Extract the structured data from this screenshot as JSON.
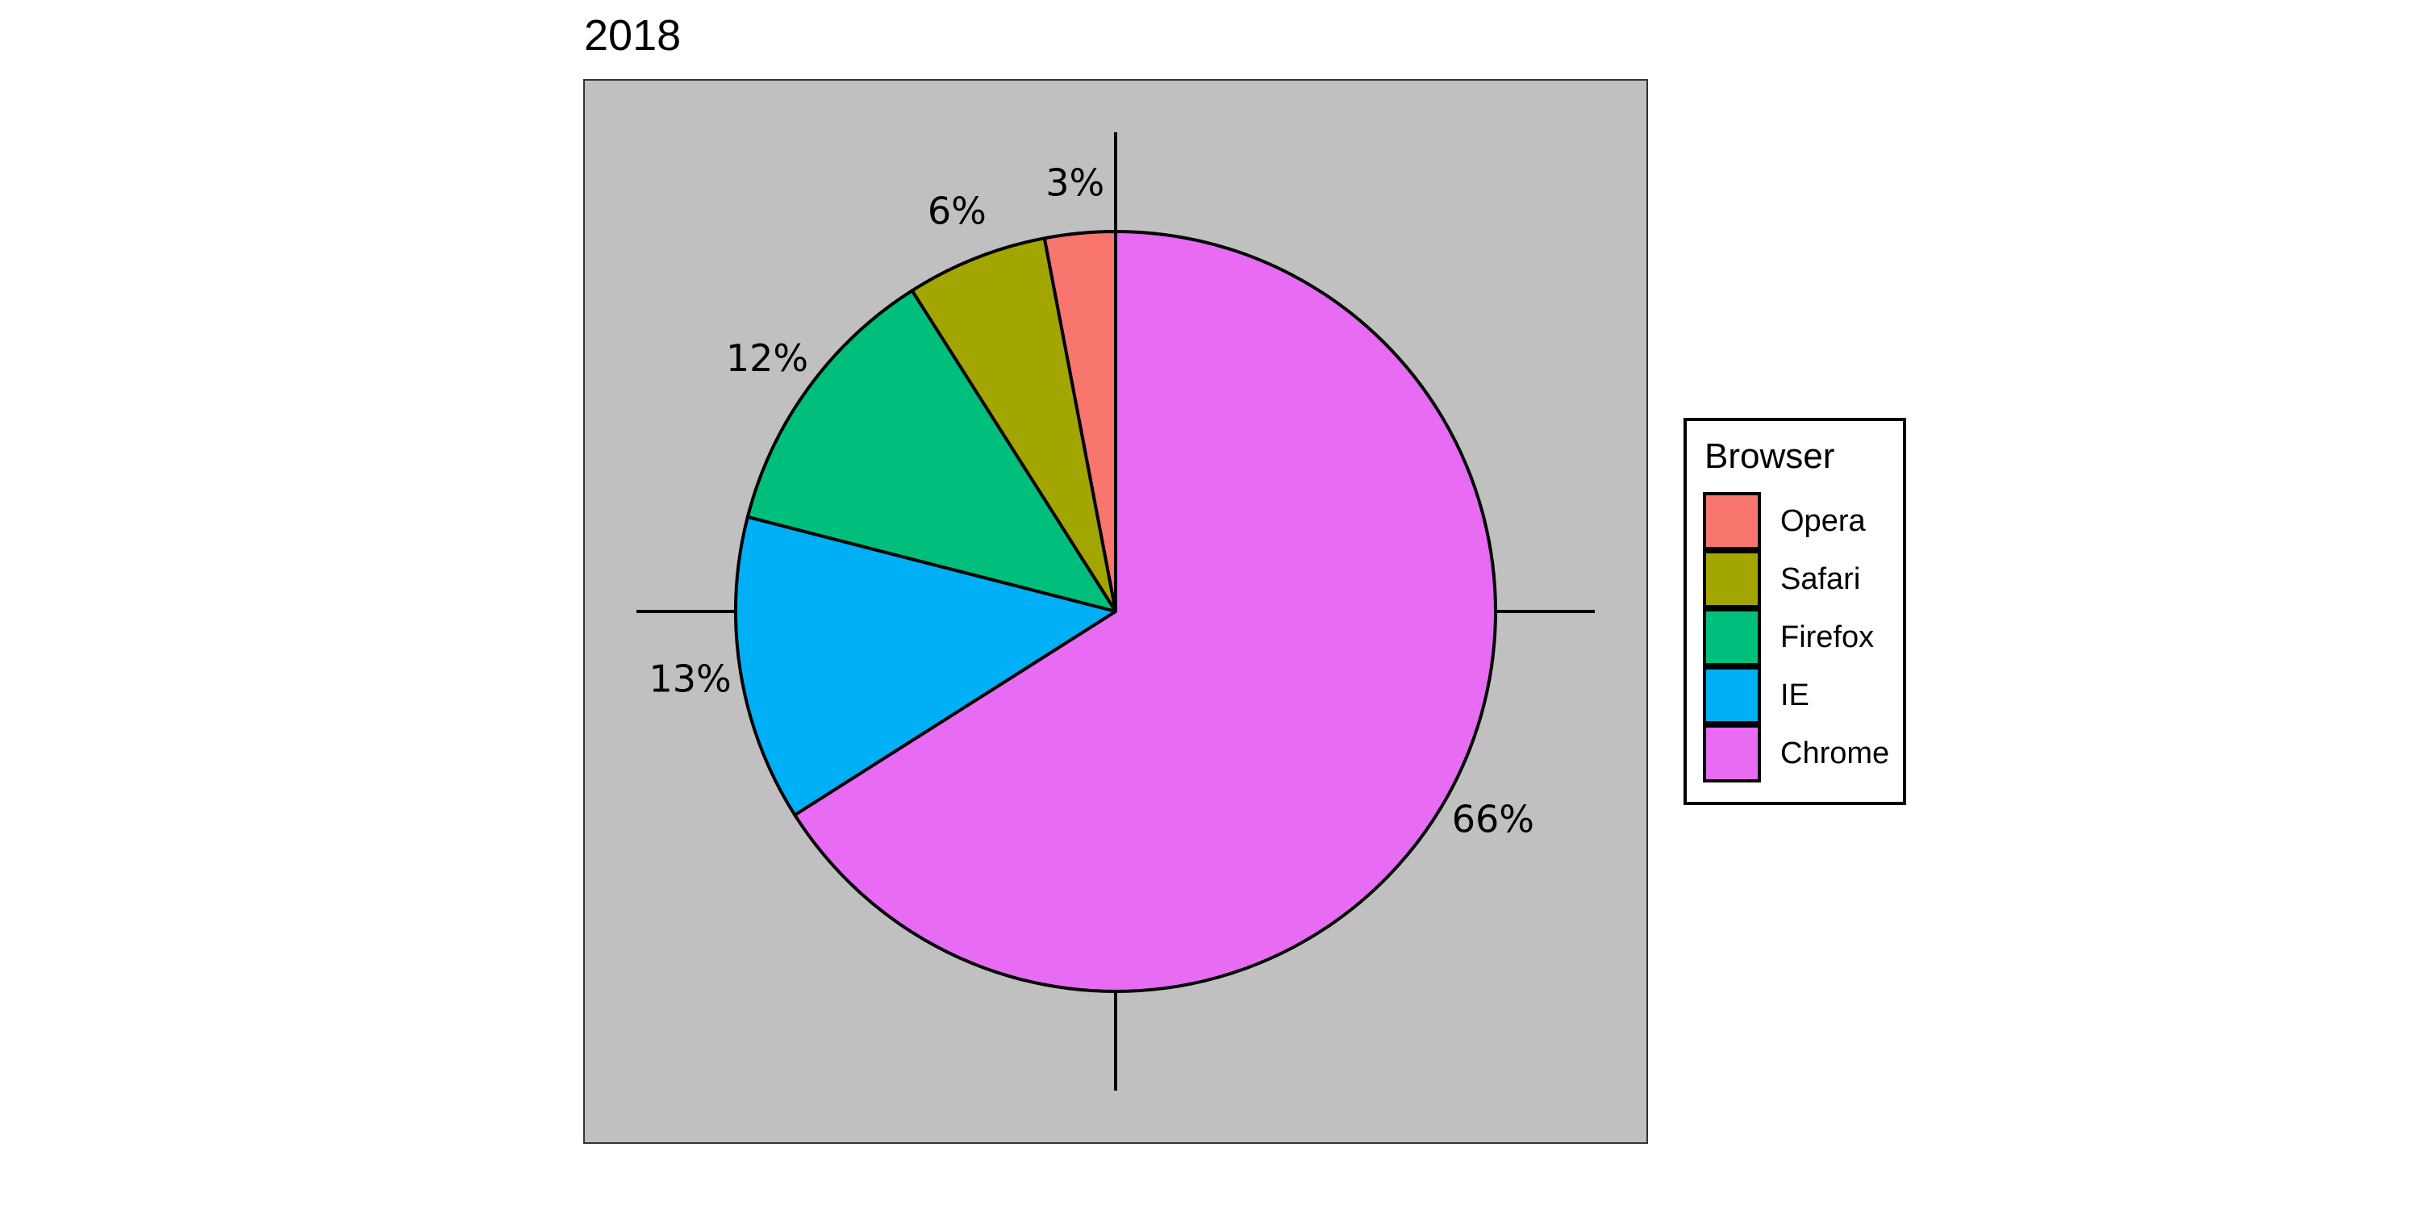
{
  "chart_data": {
    "type": "pie",
    "title": "2018",
    "start_angle": "12 o'clock",
    "direction": "counter-clockwise",
    "slices": [
      {
        "label": "Opera",
        "value": 3,
        "value_label": "3%",
        "color": "#F8766D"
      },
      {
        "label": "Safari",
        "value": 6,
        "value_label": "6%",
        "color": "#A3A500"
      },
      {
        "label": "Firefox",
        "value": 12,
        "value_label": "12%",
        "color": "#00BF7D"
      },
      {
        "label": "IE",
        "value": 13,
        "value_label": "13%",
        "color": "#00B0F6"
      },
      {
        "label": "Chrome",
        "value": 66,
        "value_label": "66%",
        "color": "#E76BF3"
      }
    ],
    "legend": {
      "title": "Browser",
      "placement": "right",
      "entries": [
        "Opera",
        "Safari",
        "Firefox",
        "IE",
        "Chrome"
      ]
    },
    "panel_background": "#C0C0C0",
    "grid": false
  }
}
